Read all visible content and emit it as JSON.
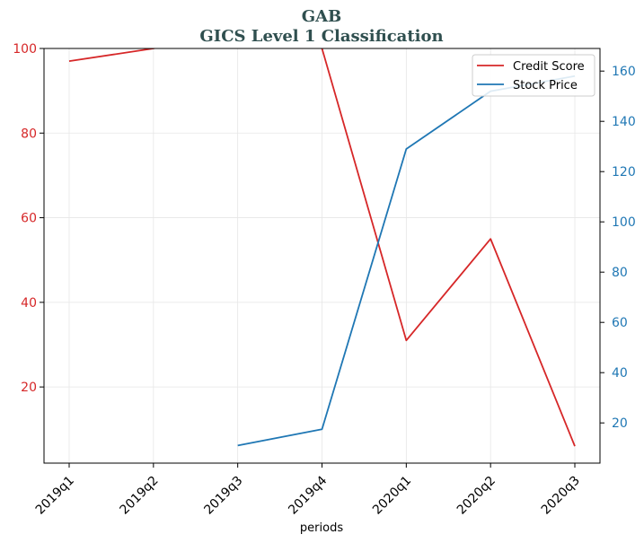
{
  "chart_data": {
    "type": "line",
    "title": "GAB",
    "subtitle": "GICS Level 1 Classification",
    "xlabel": "periods",
    "categories": [
      "2019q1",
      "2019q2",
      "2019q3",
      "2019q4",
      "2020q1",
      "2020q2",
      "2020q3"
    ],
    "left_axis": {
      "ylim": [
        2,
        100
      ],
      "ticks": [
        "20",
        "40",
        "60",
        "80",
        "100"
      ],
      "tick_values": [
        20,
        40,
        60,
        80,
        100
      ],
      "color": "#d62728"
    },
    "right_axis": {
      "ylim": [
        4,
        169
      ],
      "ticks": [
        "20",
        "40",
        "60",
        "80",
        "100",
        "120",
        "140",
        "160"
      ],
      "tick_values": [
        20,
        40,
        60,
        80,
        100,
        120,
        140,
        160
      ],
      "color": "#1f77b4"
    },
    "series": [
      {
        "name": "Credit Score",
        "axis": "left",
        "color": "#d62728",
        "values": [
          97,
          100,
          105,
          100,
          31,
          55,
          6
        ]
      },
      {
        "name": "Stock Price",
        "axis": "right",
        "color": "#1f77b4",
        "values": [
          null,
          null,
          11,
          17.5,
          129,
          152,
          158
        ]
      }
    ],
    "grid": true,
    "legend_position": "top-right"
  }
}
